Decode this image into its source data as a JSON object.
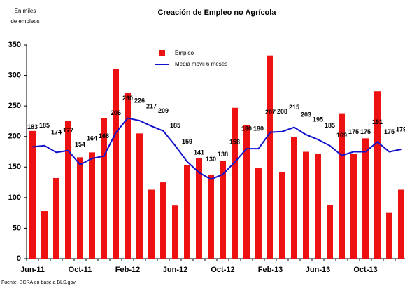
{
  "chart_data": {
    "type": "bar-line",
    "title": "Creación de Empleo no Agrícola",
    "y_unit": [
      "En miles",
      "de empleos"
    ],
    "source": "Fuente: BCRA en base a BLS.gov",
    "categories": [
      "Jun-11",
      null,
      null,
      null,
      "Oct-11",
      null,
      null,
      null,
      "Feb-12",
      null,
      null,
      null,
      "Jun-12",
      null,
      null,
      null,
      "Oct-12",
      null,
      null,
      null,
      "Feb-13",
      null,
      null,
      null,
      "Jun-13",
      null,
      null,
      null,
      "Oct-13",
      null,
      null,
      null
    ],
    "series": [
      {
        "name": "Empleo",
        "color": "#ee1111",
        "kind": "bar",
        "values": [
          209,
          78,
          132,
          225,
          166,
          174,
          230,
          311,
          271,
          205,
          113,
          125,
          87,
          153,
          165,
          137,
          160,
          247,
          219,
          148,
          332,
          142,
          199,
          175,
          172,
          88,
          238,
          172,
          197,
          274,
          75,
          113
        ]
      },
      {
        "name": "Media móvil 6 meses",
        "color": "#1111cc",
        "kind": "line",
        "values": [
          183,
          185,
          174,
          177,
          154,
          164,
          168,
          206,
          230,
          226,
          217,
          209,
          185,
          159,
          141,
          130,
          138,
          158,
          180,
          180,
          207,
          208,
          215,
          203,
          195,
          185,
          169,
          175,
          175,
          191,
          175,
          179
        ]
      }
    ],
    "ylim": [
      0,
      350
    ],
    "yticks": [
      0,
      50,
      100,
      150,
      200,
      250,
      300,
      350
    ],
    "legend": "top"
  }
}
